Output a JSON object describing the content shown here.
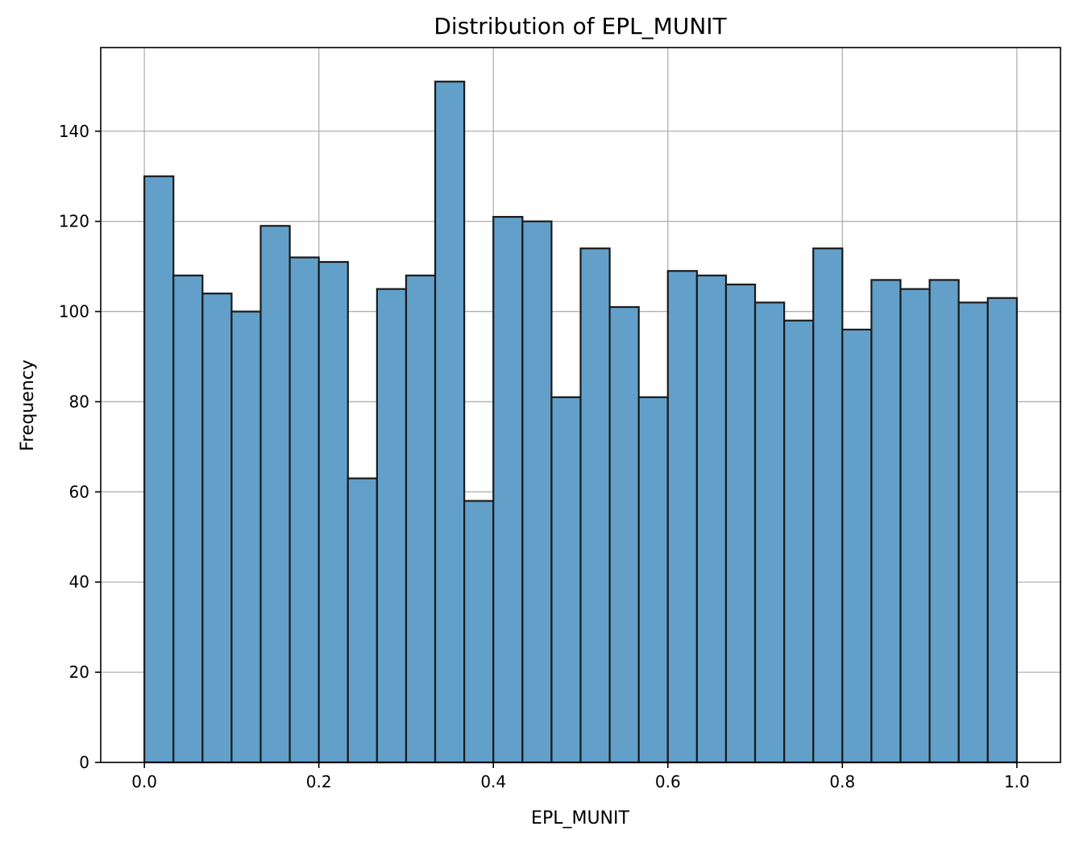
{
  "chart_data": {
    "type": "bar",
    "title": "Distribution of EPL_MUNIT",
    "xlabel": "EPL_MUNIT",
    "ylabel": "Frequency",
    "xlim": [
      -0.05,
      1.05
    ],
    "ylim": [
      0,
      158.55
    ],
    "xticks": [
      0.0,
      0.2,
      0.4,
      0.6,
      0.8,
      1.0
    ],
    "xtick_labels": [
      "0.0",
      "0.2",
      "0.4",
      "0.6",
      "0.8",
      "1.0"
    ],
    "yticks": [
      0,
      20,
      40,
      60,
      80,
      100,
      120,
      140
    ],
    "ytick_labels": [
      "0",
      "20",
      "40",
      "60",
      "80",
      "100",
      "120",
      "140"
    ],
    "grid": true,
    "bin_range": [
      0.0,
      1.0
    ],
    "bins": 30,
    "values": [
      130,
      108,
      104,
      100,
      119,
      112,
      111,
      63,
      105,
      108,
      151,
      58,
      121,
      120,
      81,
      114,
      101,
      81,
      109,
      108,
      106,
      102,
      98,
      114,
      96,
      107,
      105,
      107,
      102,
      103
    ],
    "colors": {
      "bar_fill": "#62a0ca",
      "bar_edge": "#1a1a1a",
      "grid": "#b0b0b0"
    }
  }
}
